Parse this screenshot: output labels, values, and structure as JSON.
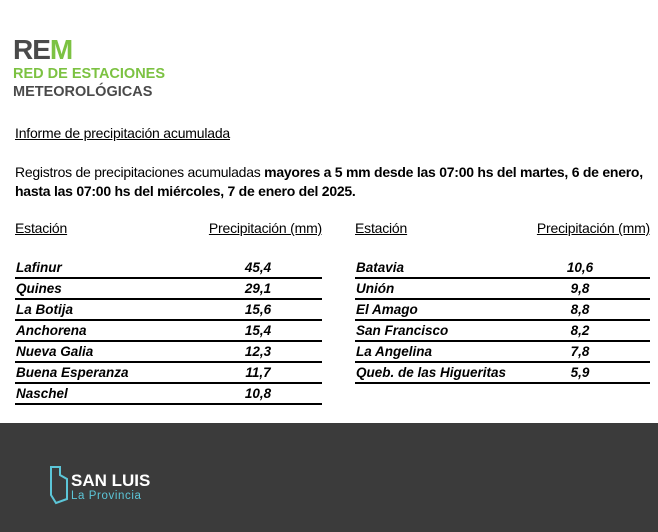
{
  "logo": {
    "re": "RE",
    "m": "M",
    "line1": "RED DE ESTACIONES",
    "line2": "METEOROLÓGICAS"
  },
  "report": {
    "title": "Informe de precipitación acumulada",
    "intro": "Registros de precipitaciones acumuladas ",
    "intro_bold": "mayores a 5 mm desde las 07:00 hs del martes, 6 de enero, hasta las 07:00 hs del miércoles, 7 de enero del 2025."
  },
  "tables": [
    {
      "headers": [
        "Estación",
        "Precipitación (mm)"
      ],
      "rows": [
        [
          "Lafinur",
          "45,4"
        ],
        [
          "Quines",
          "29,1"
        ],
        [
          "La Botija",
          "15,6"
        ],
        [
          "Anchorena",
          "15,4"
        ],
        [
          "Nueva Galia",
          "12,3"
        ],
        [
          "Buena Esperanza",
          "11,7"
        ],
        [
          "Naschel",
          "10,8"
        ]
      ]
    },
    {
      "headers": [
        "Estación",
        "Precipitación (mm)"
      ],
      "rows": [
        [
          "Batavia",
          "10,6"
        ],
        [
          "Unión",
          "9,8"
        ],
        [
          "El Amago",
          "8,8"
        ],
        [
          "San Francisco",
          "8,2"
        ],
        [
          "La Angelina",
          "7,8"
        ],
        [
          "Queb. de las Higueritas",
          "5,9"
        ]
      ]
    }
  ],
  "footer": {
    "name": "SAN LUIS",
    "sub": "La Provincia"
  }
}
